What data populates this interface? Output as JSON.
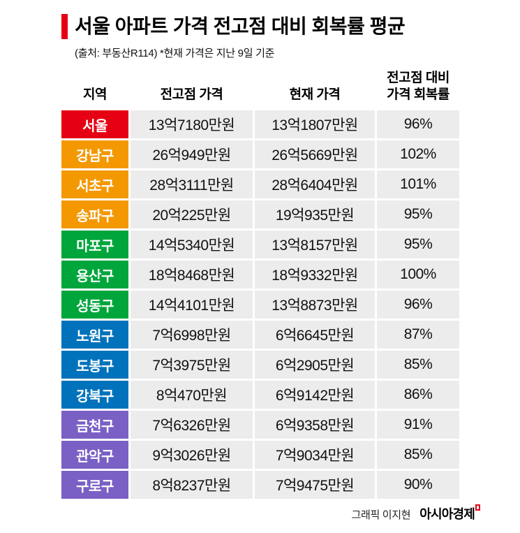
{
  "header": {
    "title": "서울 아파트 가격 전고점 대비 회복률 평균",
    "subtitle": "(출처: 부동산R114)  *현재 가격은 지난 9일 기준"
  },
  "chart_data": {
    "type": "table",
    "title": "서울 아파트 가격 전고점 대비 회복률 평균",
    "source_note": "(출처: 부동산R114)  *현재 가격은 지난 9일 기준",
    "columns": {
      "region": "지역",
      "peak_price": "전고점 가격",
      "current_price": "현재 가격",
      "recovery_rate": [
        "전고점 대비",
        "가격 회복률"
      ]
    },
    "rows": [
      {
        "region": "서울",
        "peak_price": "13억7180만원",
        "current_price": "13억1807만원",
        "recovery_rate": "96%",
        "color": "#e60013"
      },
      {
        "region": "강남구",
        "peak_price": "26억949만원",
        "current_price": "26억5669만원",
        "recovery_rate": "102%",
        "color": "#f39800"
      },
      {
        "region": "서초구",
        "peak_price": "28억3111만원",
        "current_price": "28억6404만원",
        "recovery_rate": "101%",
        "color": "#f39800"
      },
      {
        "region": "송파구",
        "peak_price": "20억225만원",
        "current_price": "19억935만원",
        "recovery_rate": "95%",
        "color": "#f39800"
      },
      {
        "region": "마포구",
        "peak_price": "14억5340만원",
        "current_price": "13억8157만원",
        "recovery_rate": "95%",
        "color": "#00a63c"
      },
      {
        "region": "용산구",
        "peak_price": "18억8468만원",
        "current_price": "18억9332만원",
        "recovery_rate": "100%",
        "color": "#00a63c"
      },
      {
        "region": "성동구",
        "peak_price": "14억4101만원",
        "current_price": "13억8873만원",
        "recovery_rate": "96%",
        "color": "#00a63c"
      },
      {
        "region": "노원구",
        "peak_price": "7억6998만원",
        "current_price": "6억6645만원",
        "recovery_rate": "87%",
        "color": "#0072bc"
      },
      {
        "region": "도봉구",
        "peak_price": "7억3975만원",
        "current_price": "6억2905만원",
        "recovery_rate": "85%",
        "color": "#0072bc"
      },
      {
        "region": "강북구",
        "peak_price": "8억470만원",
        "current_price": "6억9142만원",
        "recovery_rate": "86%",
        "color": "#0072bc"
      },
      {
        "region": "금천구",
        "peak_price": "7억6326만원",
        "current_price": "6억9358만원",
        "recovery_rate": "91%",
        "color": "#7a5fc5"
      },
      {
        "region": "관악구",
        "peak_price": "9억3026만원",
        "current_price": "7억9034만원",
        "recovery_rate": "85%",
        "color": "#7a5fc5"
      },
      {
        "region": "구로구",
        "peak_price": "8억8237만원",
        "current_price": "7억9475만원",
        "recovery_rate": "90%",
        "color": "#7a5fc5"
      }
    ]
  },
  "footer": {
    "credit": "그래픽 이지현",
    "brand": "아시아경제"
  },
  "colors": {
    "title_accent": "#e60013",
    "cell_background": "#ececec",
    "group_seoul": "#e60013",
    "group_gangnam_seocho_songpa": "#f39800",
    "group_mapo_yongsan_seongdong": "#00a63c",
    "group_nowon_dobong_gangbuk": "#0072bc",
    "group_geumcheon_gwanak_guro": "#7a5fc5"
  }
}
